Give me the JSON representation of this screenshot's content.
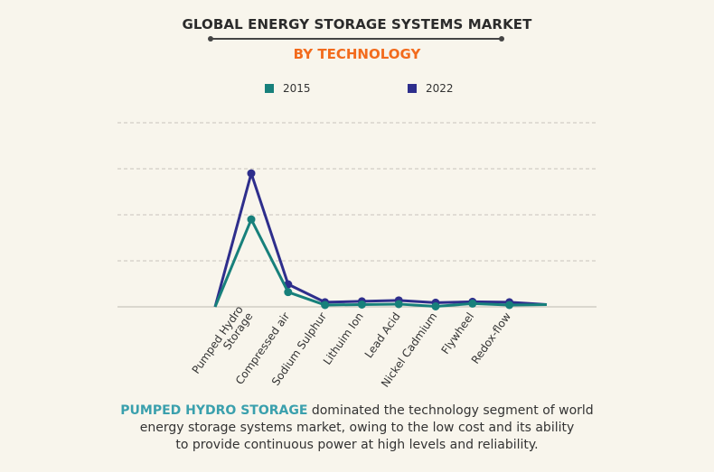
{
  "header": {
    "title": "GLOBAL ENERGY STORAGE SYSTEMS MARKET",
    "subtitle": "BY TECHNOLOGY"
  },
  "caption": {
    "highlight": "PUMPED HYDRO STORAGE",
    "line1_rest": " dominated the technology segment of world",
    "line2": "energy storage systems market, owing to the low cost and its ability",
    "line3": "to provide continuous power at high levels and reliability."
  },
  "colors": {
    "series_2015": "#17807b",
    "series_2022": "#2e2e8c",
    "title": "#2b2b2b",
    "subtitle": "#f26b1d",
    "highlight": "#3aa0ad",
    "grid": "#c8c4bc"
  },
  "chart_data": {
    "type": "line",
    "title": "GLOBAL ENERGY STORAGE SYSTEMS MARKET",
    "subtitle": "BY TECHNOLOGY",
    "xlabel": "",
    "ylabel": "",
    "categories": [
      "Pumped Hydro Storage",
      "Compressed air",
      "Sodium Sulphur",
      "Lithuim Ion",
      "Lead Acid",
      "Nickel Cadmium",
      "Flywheel",
      "Redox-flow"
    ],
    "x_tick_labels": [
      [
        "Pumped Hydro",
        "Storage"
      ],
      [
        "Compressed air"
      ],
      [
        "Sodium Sulphur"
      ],
      [
        "Lithuim Ion"
      ],
      [
        "Lead Acid"
      ],
      [
        "Nickel Cadmium"
      ],
      [
        "Flywheel"
      ],
      [
        "Redox-flow"
      ]
    ],
    "series": [
      {
        "name": "2015",
        "start_value": 0,
        "values": [
          1.9,
          0.32,
          0.04,
          0.05,
          0.06,
          0.01,
          0.07,
          0.04
        ],
        "end_value": 0.05
      },
      {
        "name": "2022",
        "start_value": 0,
        "values": [
          2.9,
          0.49,
          0.1,
          0.12,
          0.14,
          0.09,
          0.11,
          0.1
        ],
        "end_value": 0.05
      }
    ],
    "ylim": [
      0,
      4
    ],
    "y_gridlines": [
      1,
      2,
      3,
      4
    ],
    "y_tick_labels_shown": false,
    "grid": true,
    "legend": {
      "position": "top",
      "entries": [
        "2015",
        "2022"
      ]
    }
  }
}
